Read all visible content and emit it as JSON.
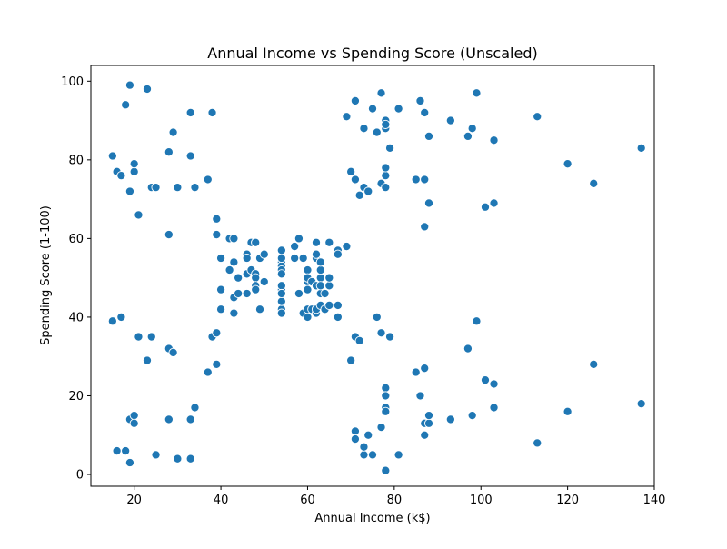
{
  "chart_data": {
    "type": "scatter",
    "title": "Annual Income vs Spending Score (Unscaled)",
    "xlabel": "Annual Income (k$)",
    "ylabel": "Spending Score (1-100)",
    "xlim": [
      10,
      140
    ],
    "ylim": [
      -3,
      104
    ],
    "xticks": [
      20,
      40,
      60,
      80,
      100,
      120,
      140
    ],
    "yticks": [
      0,
      20,
      40,
      60,
      80,
      100
    ],
    "grid": false,
    "marker_color": "#1f77b4",
    "marker_edge_color": "#ffffff",
    "points": [
      [
        15,
        39
      ],
      [
        15,
        81
      ],
      [
        16,
        6
      ],
      [
        16,
        77
      ],
      [
        17,
        40
      ],
      [
        17,
        76
      ],
      [
        18,
        6
      ],
      [
        18,
        94
      ],
      [
        19,
        3
      ],
      [
        19,
        72
      ],
      [
        19,
        14
      ],
      [
        19,
        99
      ],
      [
        20,
        15
      ],
      [
        20,
        77
      ],
      [
        20,
        13
      ],
      [
        20,
        79
      ],
      [
        21,
        35
      ],
      [
        21,
        66
      ],
      [
        23,
        29
      ],
      [
        23,
        98
      ],
      [
        24,
        35
      ],
      [
        24,
        73
      ],
      [
        25,
        5
      ],
      [
        25,
        73
      ],
      [
        28,
        14
      ],
      [
        28,
        82
      ],
      [
        28,
        32
      ],
      [
        28,
        61
      ],
      [
        29,
        31
      ],
      [
        29,
        87
      ],
      [
        30,
        4
      ],
      [
        30,
        73
      ],
      [
        33,
        4
      ],
      [
        33,
        92
      ],
      [
        33,
        14
      ],
      [
        33,
        81
      ],
      [
        34,
        17
      ],
      [
        34,
        73
      ],
      [
        37,
        26
      ],
      [
        37,
        75
      ],
      [
        38,
        35
      ],
      [
        38,
        92
      ],
      [
        39,
        36
      ],
      [
        39,
        61
      ],
      [
        39,
        28
      ],
      [
        39,
        65
      ],
      [
        40,
        55
      ],
      [
        40,
        47
      ],
      [
        40,
        42
      ],
      [
        40,
        42
      ],
      [
        42,
        52
      ],
      [
        42,
        60
      ],
      [
        43,
        54
      ],
      [
        43,
        60
      ],
      [
        43,
        45
      ],
      [
        43,
        41
      ],
      [
        44,
        50
      ],
      [
        44,
        46
      ],
      [
        46,
        51
      ],
      [
        46,
        46
      ],
      [
        46,
        56
      ],
      [
        46,
        55
      ],
      [
        47,
        52
      ],
      [
        47,
        59
      ],
      [
        48,
        51
      ],
      [
        48,
        59
      ],
      [
        48,
        50
      ],
      [
        48,
        48
      ],
      [
        48,
        59
      ],
      [
        48,
        47
      ],
      [
        49,
        55
      ],
      [
        49,
        42
      ],
      [
        50,
        49
      ],
      [
        50,
        56
      ],
      [
        54,
        47
      ],
      [
        54,
        54
      ],
      [
        54,
        53
      ],
      [
        54,
        48
      ],
      [
        54,
        52
      ],
      [
        54,
        42
      ],
      [
        54,
        51
      ],
      [
        54,
        55
      ],
      [
        54,
        41
      ],
      [
        54,
        44
      ],
      [
        54,
        57
      ],
      [
        54,
        46
      ],
      [
        57,
        58
      ],
      [
        57,
        55
      ],
      [
        58,
        60
      ],
      [
        58,
        46
      ],
      [
        59,
        55
      ],
      [
        59,
        41
      ],
      [
        60,
        49
      ],
      [
        60,
        40
      ],
      [
        60,
        42
      ],
      [
        60,
        52
      ],
      [
        60,
        47
      ],
      [
        60,
        50
      ],
      [
        61,
        42
      ],
      [
        61,
        49
      ],
      [
        62,
        41
      ],
      [
        62,
        48
      ],
      [
        62,
        59
      ],
      [
        62,
        55
      ],
      [
        62,
        56
      ],
      [
        62,
        42
      ],
      [
        63,
        50
      ],
      [
        63,
        46
      ],
      [
        63,
        43
      ],
      [
        63,
        48
      ],
      [
        63,
        52
      ],
      [
        63,
        54
      ],
      [
        64,
        42
      ],
      [
        64,
        46
      ],
      [
        65,
        48
      ],
      [
        65,
        50
      ],
      [
        65,
        43
      ],
      [
        65,
        59
      ],
      [
        67,
        43
      ],
      [
        67,
        57
      ],
      [
        67,
        56
      ],
      [
        67,
        40
      ],
      [
        69,
        58
      ],
      [
        69,
        91
      ],
      [
        70,
        29
      ],
      [
        70,
        77
      ],
      [
        71,
        35
      ],
      [
        71,
        95
      ],
      [
        71,
        11
      ],
      [
        71,
        75
      ],
      [
        71,
        9
      ],
      [
        71,
        75
      ],
      [
        72,
        34
      ],
      [
        72,
        71
      ],
      [
        73,
        5
      ],
      [
        73,
        88
      ],
      [
        73,
        7
      ],
      [
        73,
        73
      ],
      [
        74,
        10
      ],
      [
        74,
        72
      ],
      [
        75,
        5
      ],
      [
        75,
        93
      ],
      [
        76,
        40
      ],
      [
        76,
        87
      ],
      [
        77,
        12
      ],
      [
        77,
        97
      ],
      [
        77,
        36
      ],
      [
        77,
        74
      ],
      [
        78,
        22
      ],
      [
        78,
        90
      ],
      [
        78,
        17
      ],
      [
        78,
        88
      ],
      [
        78,
        20
      ],
      [
        78,
        76
      ],
      [
        78,
        16
      ],
      [
        78,
        89
      ],
      [
        78,
        1
      ],
      [
        78,
        78
      ],
      [
        78,
        1
      ],
      [
        78,
        73
      ],
      [
        79,
        35
      ],
      [
        79,
        83
      ],
      [
        81,
        5
      ],
      [
        81,
        93
      ],
      [
        85,
        26
      ],
      [
        85,
        75
      ],
      [
        86,
        20
      ],
      [
        86,
        95
      ],
      [
        87,
        27
      ],
      [
        87,
        63
      ],
      [
        87,
        13
      ],
      [
        87,
        75
      ],
      [
        87,
        10
      ],
      [
        87,
        92
      ],
      [
        88,
        13
      ],
      [
        88,
        86
      ],
      [
        88,
        15
      ],
      [
        88,
        69
      ],
      [
        93,
        14
      ],
      [
        93,
        90
      ],
      [
        97,
        32
      ],
      [
        97,
        86
      ],
      [
        98,
        15
      ],
      [
        98,
        88
      ],
      [
        99,
        39
      ],
      [
        99,
        97
      ],
      [
        101,
        24
      ],
      [
        101,
        68
      ],
      [
        103,
        17
      ],
      [
        103,
        85
      ],
      [
        103,
        23
      ],
      [
        103,
        69
      ],
      [
        113,
        8
      ],
      [
        113,
        91
      ],
      [
        120,
        16
      ],
      [
        120,
        79
      ],
      [
        126,
        28
      ],
      [
        126,
        74
      ],
      [
        137,
        18
      ],
      [
        137,
        83
      ]
    ]
  }
}
